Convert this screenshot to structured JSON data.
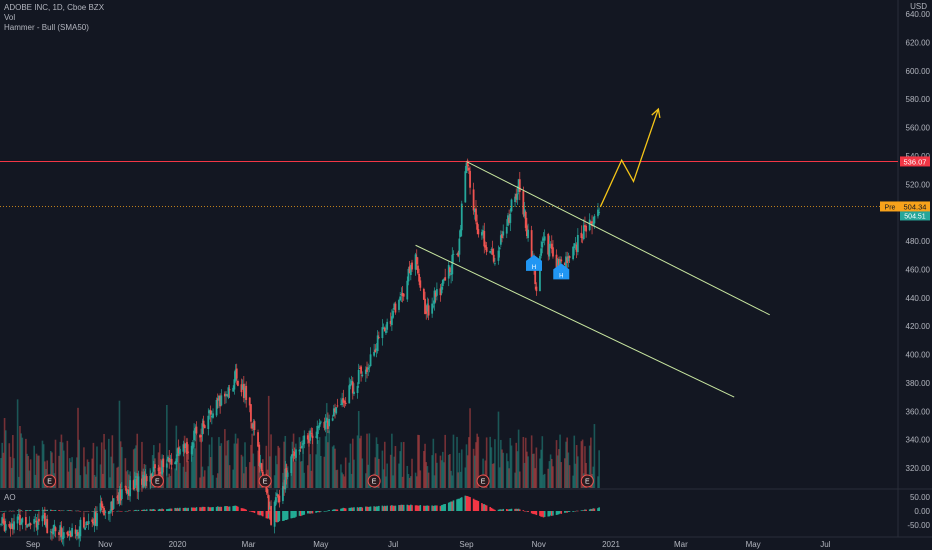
{
  "legend": {
    "symbol": "ADOBE INC, 1D, Cboe BZX",
    "volume": "Vol",
    "indicator": "Hammer - Bull (SMA50)"
  },
  "currency": "USD",
  "colors": {
    "background": "#131722",
    "up": "#26a69a",
    "down": "#ef5350",
    "resistance": "#f23645",
    "channel": "#c8e6a0",
    "projection": "#f5c518",
    "pre_tag": "#f7a21b",
    "hammer_marker": "#2196f3",
    "earnings_marker": "#ef5350"
  },
  "icons": {
    "hammer": "house-icon",
    "earnings": "circle-letter-icon"
  },
  "chart_data": [
    {
      "type": "candlestick",
      "title": "ADOBE INC, 1D, Cboe BZX",
      "y_ticks": [
        "320.00",
        "340.00",
        "360.00",
        "380.00",
        "400.00",
        "420.00",
        "440.00",
        "460.00",
        "480.00",
        "500.00",
        "520.00",
        "540.00",
        "560.00",
        "580.00",
        "600.00",
        "620.00",
        "640.00"
      ],
      "ylim": [
        310,
        645
      ],
      "x_ticks": [
        "Sep",
        "Nov",
        "2020",
        "Mar",
        "May",
        "Jul",
        "Sep",
        "Nov",
        "2021",
        "Mar",
        "May",
        "Jul"
      ],
      "price_path": [
        {
          "date": "2019-08-01",
          "price": 280
        },
        {
          "date": "2019-09-01",
          "price": 285
        },
        {
          "date": "2019-10-01",
          "price": 272
        },
        {
          "date": "2019-11-10",
          "price": 298
        },
        {
          "date": "2019-12-01",
          "price": 312
        },
        {
          "date": "2020-01-05",
          "price": 330
        },
        {
          "date": "2020-02-01",
          "price": 360
        },
        {
          "date": "2020-02-20",
          "price": 385
        },
        {
          "date": "2020-03-01",
          "price": 365
        },
        {
          "date": "2020-03-20",
          "price": 285
        },
        {
          "date": "2020-04-10",
          "price": 335
        },
        {
          "date": "2020-05-10",
          "price": 355
        },
        {
          "date": "2020-06-10",
          "price": 395
        },
        {
          "date": "2020-07-10",
          "price": 445
        },
        {
          "date": "2020-07-20",
          "price": 470
        },
        {
          "date": "2020-07-28",
          "price": 430
        },
        {
          "date": "2020-08-10",
          "price": 445
        },
        {
          "date": "2020-08-25",
          "price": 475
        },
        {
          "date": "2020-09-01",
          "price": 535
        },
        {
          "date": "2020-09-10",
          "price": 490
        },
        {
          "date": "2020-09-25",
          "price": 465
        },
        {
          "date": "2020-10-15",
          "price": 520
        },
        {
          "date": "2020-10-30",
          "price": 450
        },
        {
          "date": "2020-11-05",
          "price": 480
        },
        {
          "date": "2020-11-20",
          "price": 460
        },
        {
          "date": "2020-12-08",
          "price": 485
        },
        {
          "date": "2020-12-22",
          "price": 504
        }
      ],
      "resistance": {
        "price": 536.07,
        "label": "536.07"
      },
      "current": {
        "label": "Pre",
        "price_label": "504.34",
        "price": 504.34,
        "sub_label": "504.51"
      },
      "channel": {
        "upper": [
          {
            "date": "2020-09-01",
            "price": 536
          },
          {
            "date": "2021-05-15",
            "price": 428
          }
        ],
        "lower": [
          {
            "date": "2020-07-20",
            "price": 477
          },
          {
            "date": "2021-04-15",
            "price": 370
          }
        ]
      },
      "projection": [
        {
          "date": "2020-12-23",
          "price": 504
        },
        {
          "date": "2021-01-10",
          "price": 537
        },
        {
          "date": "2021-01-20",
          "price": 522
        },
        {
          "date": "2021-02-10",
          "price": 573
        }
      ],
      "hammer_markers": [
        {
          "date": "2020-10-28",
          "price": 466,
          "text": "H"
        },
        {
          "date": "2020-11-20",
          "price": 460,
          "text": "H"
        }
      ],
      "earnings_markers": [
        {
          "date": "2019-09-15",
          "text": "E"
        },
        {
          "date": "2019-12-15",
          "text": "E"
        },
        {
          "date": "2020-03-15",
          "text": "E"
        },
        {
          "date": "2020-06-15",
          "text": "E"
        },
        {
          "date": "2020-09-15",
          "text": "E"
        },
        {
          "date": "2020-12-12",
          "text": "E"
        }
      ]
    },
    {
      "type": "bar",
      "title": "AO",
      "y_ticks": [
        "50.00",
        "0.00",
        "-50.00"
      ],
      "ylim": [
        -65,
        60
      ],
      "profile": [
        {
          "date": "2019-08-01",
          "value": 0
        },
        {
          "date": "2019-09-15",
          "value": 4
        },
        {
          "date": "2019-11-01",
          "value": -3
        },
        {
          "date": "2020-01-01",
          "value": 10
        },
        {
          "date": "2020-02-20",
          "value": 18
        },
        {
          "date": "2020-03-25",
          "value": -40
        },
        {
          "date": "2020-04-20",
          "value": -10
        },
        {
          "date": "2020-05-20",
          "value": 10
        },
        {
          "date": "2020-07-10",
          "value": 22
        },
        {
          "date": "2020-08-10",
          "value": 18
        },
        {
          "date": "2020-09-01",
          "value": 55
        },
        {
          "date": "2020-09-25",
          "value": 5
        },
        {
          "date": "2020-10-15",
          "value": 8
        },
        {
          "date": "2020-11-05",
          "value": -22
        },
        {
          "date": "2020-11-25",
          "value": -5
        },
        {
          "date": "2020-12-22",
          "value": 12
        }
      ]
    }
  ]
}
